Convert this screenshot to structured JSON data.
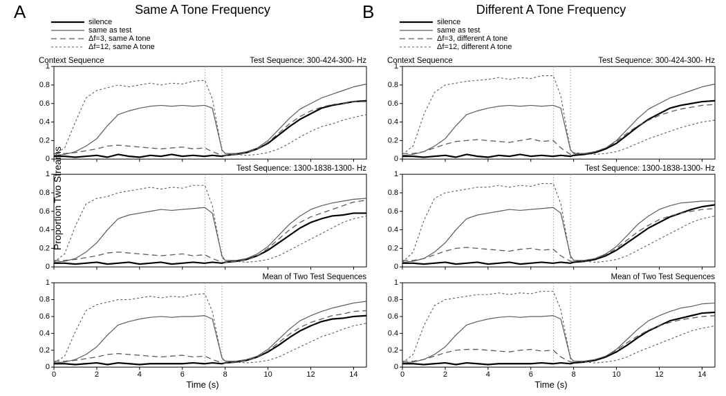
{
  "ylabel": "Proportion Two Streams",
  "xlabel": "Time (s)",
  "columns": [
    {
      "letter": "A",
      "title": "Same A Tone Frequency",
      "legend": [
        "silence",
        "same as test",
        "Δf=3, same A tone",
        "Δf=12, same A tone"
      ],
      "panels": [
        {
          "caption_left": "Context Sequence",
          "caption_right": "Test Sequence: 300-424-300- Hz"
        },
        {
          "caption_left": "",
          "caption_right": "Test Sequence: 1300-1838-1300- Hz"
        },
        {
          "caption_left": "",
          "caption_right": "Mean of Two Test Sequences"
        }
      ]
    },
    {
      "letter": "B",
      "title": "Different A Tone Frequency",
      "legend": [
        "silence",
        "same as test",
        "Δf=3, different A tone",
        "Δf=12, different A tone"
      ],
      "panels": [
        {
          "caption_left": "Context Sequence",
          "caption_right": "Test Sequence: 300-424-300- Hz"
        },
        {
          "caption_left": "",
          "caption_right": "Test Sequence: 1300-1838-1300- Hz"
        },
        {
          "caption_left": "",
          "caption_right": "Mean of Two Test Sequences"
        }
      ]
    }
  ],
  "chart": {
    "xlim": [
      0,
      14.6
    ],
    "ylim": [
      0,
      1
    ],
    "xtick_step": 2,
    "xtick_last": 14,
    "ytick_step": 0.2,
    "tick_fontsize": 11,
    "axis_color": "#000000",
    "grid_color": "#9a9a9a",
    "vlines": [
      7.05,
      7.85
    ],
    "vline_dash": "2,2",
    "series": [
      {
        "id": "silence",
        "label_key": 0,
        "color": "#000000",
        "width": 2.2,
        "dash": null
      },
      {
        "id": "same_as_test",
        "label_key": 1,
        "color": "#5a5a5a",
        "width": 1.2,
        "dash": null
      },
      {
        "id": "df3",
        "label_key": 2,
        "color": "#5a5a5a",
        "width": 1.3,
        "dash": "8,5"
      },
      {
        "id": "df12",
        "label_key": 3,
        "color": "#5a5a5a",
        "width": 1.1,
        "dash": "3,3"
      }
    ],
    "time": [
      0,
      0.5,
      1,
      1.5,
      2,
      2.5,
      3,
      3.5,
      4,
      4.5,
      5,
      5.5,
      6,
      6.5,
      7,
      7.05,
      7.4,
      7.85,
      8,
      8.5,
      9,
      9.5,
      10,
      10.5,
      11,
      11.5,
      12,
      12.5,
      13,
      13.5,
      14,
      14.6
    ],
    "data": {
      "A": [
        {
          "silence": [
            0.03,
            0.03,
            0.02,
            0.03,
            0.04,
            0.02,
            0.05,
            0.03,
            0.02,
            0.04,
            0.03,
            0.05,
            0.03,
            0.04,
            0.03,
            0.03,
            0.04,
            0.03,
            0.04,
            0.05,
            0.07,
            0.11,
            0.17,
            0.26,
            0.35,
            0.43,
            0.49,
            0.55,
            0.58,
            0.6,
            0.62,
            0.63
          ],
          "same_as_test": [
            0.04,
            0.05,
            0.08,
            0.14,
            0.22,
            0.36,
            0.48,
            0.52,
            0.55,
            0.57,
            0.58,
            0.57,
            0.58,
            0.57,
            0.58,
            0.58,
            0.55,
            0.1,
            0.06,
            0.06,
            0.08,
            0.12,
            0.2,
            0.32,
            0.44,
            0.54,
            0.6,
            0.66,
            0.7,
            0.74,
            0.78,
            0.81
          ],
          "df3": [
            0.06,
            0.06,
            0.07,
            0.09,
            0.11,
            0.14,
            0.15,
            0.14,
            0.13,
            0.12,
            0.11,
            0.12,
            0.13,
            0.11,
            0.12,
            0.12,
            0.08,
            0.04,
            0.04,
            0.05,
            0.07,
            0.11,
            0.18,
            0.28,
            0.38,
            0.46,
            0.52,
            0.56,
            0.59,
            0.6,
            0.62,
            0.62
          ],
          "df12": [
            0.05,
            0.12,
            0.4,
            0.66,
            0.74,
            0.77,
            0.8,
            0.78,
            0.8,
            0.82,
            0.8,
            0.82,
            0.81,
            0.84,
            0.85,
            0.85,
            0.65,
            0.09,
            0.06,
            0.05,
            0.04,
            0.05,
            0.07,
            0.11,
            0.17,
            0.24,
            0.3,
            0.35,
            0.38,
            0.42,
            0.45,
            0.48
          ]
        },
        {
          "silence": [
            0.04,
            0.04,
            0.03,
            0.04,
            0.05,
            0.03,
            0.04,
            0.05,
            0.03,
            0.04,
            0.05,
            0.03,
            0.04,
            0.05,
            0.04,
            0.04,
            0.05,
            0.04,
            0.05,
            0.06,
            0.08,
            0.12,
            0.18,
            0.26,
            0.34,
            0.42,
            0.48,
            0.52,
            0.55,
            0.56,
            0.58,
            0.58
          ],
          "same_as_test": [
            0.05,
            0.06,
            0.09,
            0.16,
            0.26,
            0.4,
            0.52,
            0.56,
            0.58,
            0.6,
            0.62,
            0.61,
            0.62,
            0.63,
            0.64,
            0.64,
            0.58,
            0.12,
            0.07,
            0.07,
            0.09,
            0.14,
            0.22,
            0.34,
            0.46,
            0.55,
            0.62,
            0.66,
            0.69,
            0.71,
            0.73,
            0.74
          ],
          "df3": [
            0.07,
            0.07,
            0.08,
            0.1,
            0.12,
            0.15,
            0.16,
            0.15,
            0.14,
            0.13,
            0.12,
            0.13,
            0.14,
            0.12,
            0.13,
            0.13,
            0.09,
            0.05,
            0.05,
            0.06,
            0.08,
            0.12,
            0.2,
            0.3,
            0.4,
            0.48,
            0.54,
            0.58,
            0.62,
            0.66,
            0.7,
            0.72
          ],
          "df12": [
            0.05,
            0.14,
            0.44,
            0.68,
            0.74,
            0.76,
            0.8,
            0.82,
            0.84,
            0.86,
            0.84,
            0.86,
            0.85,
            0.88,
            0.88,
            0.88,
            0.66,
            0.1,
            0.07,
            0.06,
            0.05,
            0.06,
            0.08,
            0.12,
            0.18,
            0.24,
            0.3,
            0.36,
            0.42,
            0.48,
            0.52,
            0.55
          ]
        },
        {
          "silence": [
            0.04,
            0.04,
            0.03,
            0.04,
            0.05,
            0.03,
            0.05,
            0.04,
            0.03,
            0.04,
            0.04,
            0.04,
            0.04,
            0.05,
            0.04,
            0.04,
            0.05,
            0.04,
            0.05,
            0.06,
            0.08,
            0.12,
            0.18,
            0.26,
            0.35,
            0.43,
            0.49,
            0.54,
            0.57,
            0.58,
            0.6,
            0.61
          ],
          "same_as_test": [
            0.05,
            0.06,
            0.09,
            0.15,
            0.24,
            0.38,
            0.5,
            0.54,
            0.57,
            0.59,
            0.6,
            0.59,
            0.6,
            0.6,
            0.61,
            0.61,
            0.57,
            0.11,
            0.07,
            0.07,
            0.09,
            0.13,
            0.21,
            0.33,
            0.45,
            0.55,
            0.61,
            0.66,
            0.7,
            0.73,
            0.76,
            0.78
          ],
          "df3": [
            0.07,
            0.07,
            0.08,
            0.1,
            0.12,
            0.15,
            0.16,
            0.15,
            0.14,
            0.13,
            0.12,
            0.13,
            0.14,
            0.12,
            0.13,
            0.13,
            0.09,
            0.05,
            0.05,
            0.06,
            0.08,
            0.12,
            0.19,
            0.29,
            0.39,
            0.47,
            0.53,
            0.57,
            0.61,
            0.63,
            0.66,
            0.67
          ],
          "df12": [
            0.05,
            0.13,
            0.42,
            0.67,
            0.74,
            0.77,
            0.8,
            0.8,
            0.82,
            0.84,
            0.82,
            0.84,
            0.83,
            0.86,
            0.87,
            0.87,
            0.66,
            0.1,
            0.07,
            0.06,
            0.05,
            0.06,
            0.08,
            0.12,
            0.18,
            0.24,
            0.3,
            0.36,
            0.4,
            0.45,
            0.49,
            0.52
          ]
        }
      ],
      "B": [
        {
          "silence": [
            0.03,
            0.03,
            0.02,
            0.03,
            0.04,
            0.02,
            0.05,
            0.03,
            0.02,
            0.04,
            0.03,
            0.05,
            0.03,
            0.04,
            0.03,
            0.03,
            0.04,
            0.03,
            0.04,
            0.05,
            0.07,
            0.11,
            0.17,
            0.26,
            0.35,
            0.43,
            0.49,
            0.55,
            0.58,
            0.6,
            0.62,
            0.63
          ],
          "same_as_test": [
            0.04,
            0.05,
            0.08,
            0.14,
            0.22,
            0.36,
            0.48,
            0.52,
            0.55,
            0.57,
            0.58,
            0.57,
            0.58,
            0.57,
            0.58,
            0.58,
            0.55,
            0.1,
            0.06,
            0.06,
            0.08,
            0.12,
            0.2,
            0.32,
            0.44,
            0.54,
            0.6,
            0.66,
            0.7,
            0.74,
            0.78,
            0.81
          ],
          "df3": [
            0.06,
            0.06,
            0.08,
            0.12,
            0.16,
            0.19,
            0.2,
            0.21,
            0.2,
            0.19,
            0.18,
            0.2,
            0.22,
            0.19,
            0.2,
            0.2,
            0.12,
            0.05,
            0.05,
            0.06,
            0.08,
            0.12,
            0.19,
            0.28,
            0.36,
            0.42,
            0.47,
            0.51,
            0.54,
            0.56,
            0.58,
            0.59
          ],
          "df12": [
            0.05,
            0.14,
            0.48,
            0.72,
            0.8,
            0.82,
            0.84,
            0.85,
            0.86,
            0.88,
            0.86,
            0.88,
            0.87,
            0.9,
            0.9,
            0.9,
            0.68,
            0.1,
            0.07,
            0.06,
            0.05,
            0.06,
            0.08,
            0.12,
            0.17,
            0.22,
            0.26,
            0.3,
            0.34,
            0.37,
            0.4,
            0.42
          ]
        },
        {
          "silence": [
            0.04,
            0.04,
            0.03,
            0.04,
            0.05,
            0.03,
            0.04,
            0.05,
            0.03,
            0.04,
            0.05,
            0.03,
            0.04,
            0.05,
            0.04,
            0.04,
            0.05,
            0.04,
            0.05,
            0.06,
            0.08,
            0.12,
            0.18,
            0.26,
            0.34,
            0.42,
            0.48,
            0.54,
            0.58,
            0.62,
            0.65,
            0.67
          ],
          "same_as_test": [
            0.05,
            0.06,
            0.09,
            0.16,
            0.26,
            0.4,
            0.52,
            0.56,
            0.58,
            0.6,
            0.62,
            0.61,
            0.62,
            0.63,
            0.64,
            0.64,
            0.58,
            0.12,
            0.07,
            0.07,
            0.09,
            0.14,
            0.22,
            0.34,
            0.46,
            0.55,
            0.62,
            0.66,
            0.69,
            0.7,
            0.71,
            0.71
          ],
          "df3": [
            0.07,
            0.07,
            0.09,
            0.13,
            0.17,
            0.2,
            0.21,
            0.2,
            0.19,
            0.18,
            0.17,
            0.19,
            0.2,
            0.18,
            0.19,
            0.19,
            0.12,
            0.06,
            0.06,
            0.07,
            0.09,
            0.13,
            0.2,
            0.29,
            0.38,
            0.45,
            0.51,
            0.55,
            0.58,
            0.6,
            0.62,
            0.63
          ],
          "df12": [
            0.05,
            0.16,
            0.5,
            0.74,
            0.8,
            0.82,
            0.84,
            0.86,
            0.86,
            0.88,
            0.86,
            0.88,
            0.87,
            0.9,
            0.9,
            0.9,
            0.68,
            0.1,
            0.07,
            0.06,
            0.05,
            0.06,
            0.08,
            0.12,
            0.18,
            0.24,
            0.3,
            0.36,
            0.42,
            0.48,
            0.52,
            0.55
          ]
        },
        {
          "silence": [
            0.04,
            0.04,
            0.03,
            0.04,
            0.05,
            0.03,
            0.05,
            0.04,
            0.03,
            0.04,
            0.04,
            0.04,
            0.04,
            0.05,
            0.04,
            0.04,
            0.05,
            0.04,
            0.05,
            0.06,
            0.08,
            0.12,
            0.18,
            0.26,
            0.35,
            0.43,
            0.49,
            0.55,
            0.58,
            0.61,
            0.64,
            0.65
          ],
          "same_as_test": [
            0.05,
            0.06,
            0.09,
            0.15,
            0.24,
            0.38,
            0.5,
            0.54,
            0.57,
            0.59,
            0.6,
            0.59,
            0.6,
            0.6,
            0.61,
            0.61,
            0.57,
            0.11,
            0.07,
            0.07,
            0.09,
            0.13,
            0.21,
            0.33,
            0.45,
            0.55,
            0.61,
            0.66,
            0.7,
            0.72,
            0.75,
            0.76
          ],
          "df3": [
            0.07,
            0.07,
            0.09,
            0.13,
            0.17,
            0.2,
            0.21,
            0.21,
            0.2,
            0.19,
            0.18,
            0.2,
            0.21,
            0.19,
            0.2,
            0.2,
            0.12,
            0.06,
            0.06,
            0.07,
            0.09,
            0.13,
            0.2,
            0.29,
            0.37,
            0.44,
            0.49,
            0.53,
            0.56,
            0.58,
            0.6,
            0.61
          ],
          "df12": [
            0.05,
            0.15,
            0.49,
            0.73,
            0.8,
            0.82,
            0.84,
            0.86,
            0.86,
            0.88,
            0.86,
            0.88,
            0.87,
            0.9,
            0.9,
            0.9,
            0.68,
            0.1,
            0.07,
            0.06,
            0.05,
            0.06,
            0.08,
            0.12,
            0.18,
            0.23,
            0.28,
            0.33,
            0.38,
            0.43,
            0.46,
            0.49
          ]
        }
      ]
    }
  }
}
